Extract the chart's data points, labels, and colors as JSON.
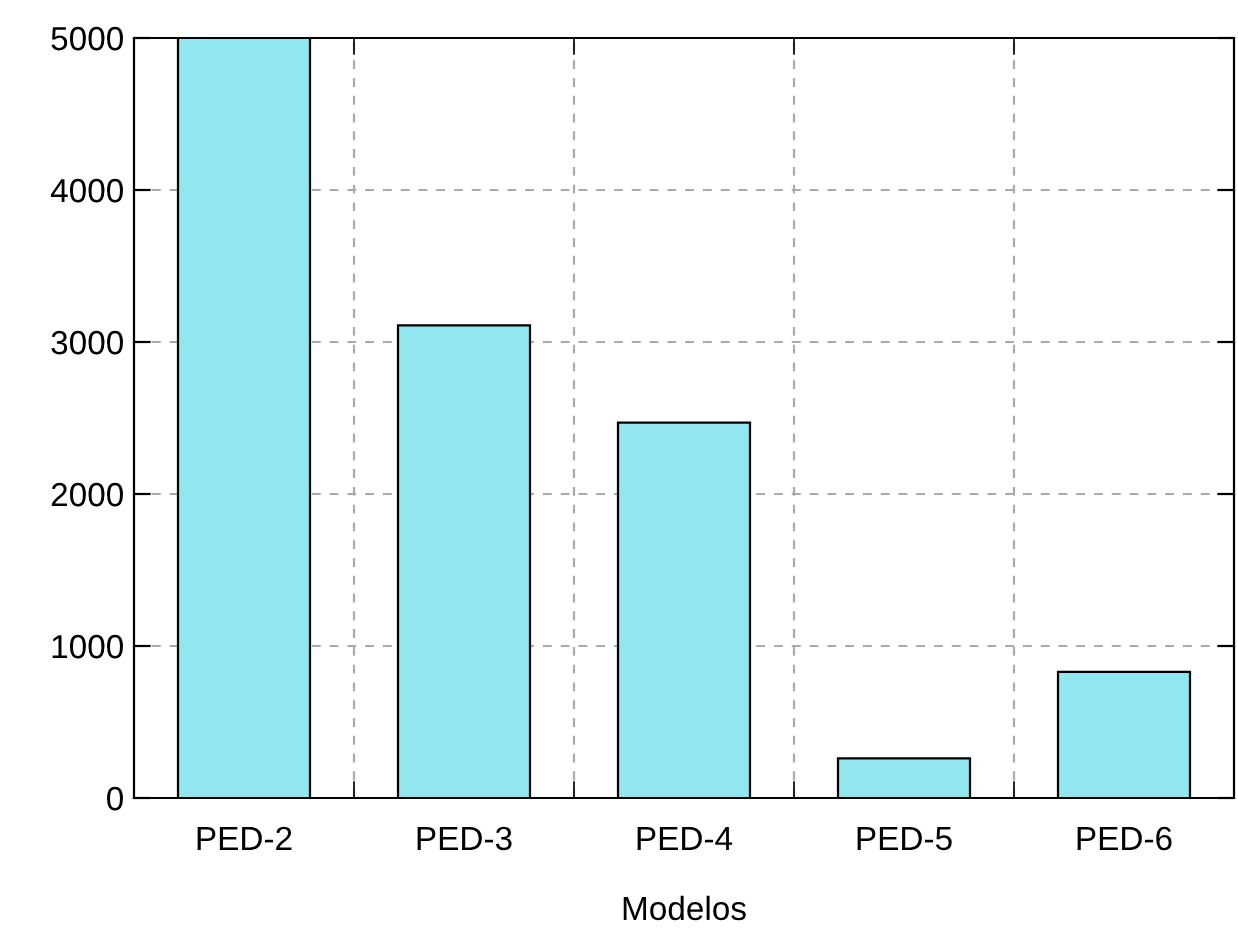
{
  "chart_data": {
    "type": "bar",
    "xlabel": "Modelos",
    "categories": [
      "PED-2",
      "PED-3",
      "PED-4",
      "PED-5",
      "PED-6"
    ],
    "values": [
      5000,
      3110,
      2470,
      260,
      830
    ],
    "color": "#92e6ef",
    "ylim": [
      0,
      5000
    ],
    "yticks": [
      0,
      1000,
      2000,
      3000,
      4000,
      5000
    ],
    "grid": true
  }
}
